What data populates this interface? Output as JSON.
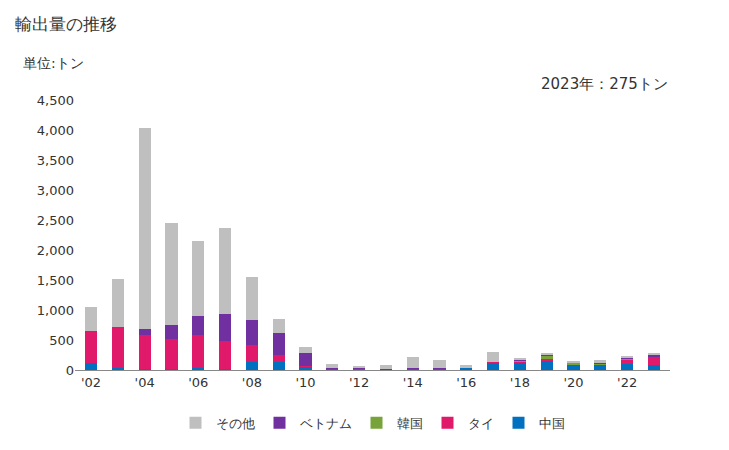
{
  "chart_data": {
    "type": "bar",
    "title": "輸出量の推移",
    "ylabel": "単位:トン",
    "annotations": [
      {
        "text": "2023年：275トン"
      }
    ],
    "stacked": true,
    "grid": false,
    "legend": "bottom",
    "categories": [
      "'02",
      null,
      "'04",
      null,
      "'06",
      null,
      "'08",
      null,
      "'10",
      null,
      "'12",
      null,
      "'14",
      null,
      "'16",
      null,
      "'18",
      null,
      "'20",
      null,
      "'22",
      null
    ],
    "series": [
      {
        "name": "中国",
        "color": "#0070c0",
        "values": [
          120,
          30,
          20,
          10,
          40,
          20,
          130,
          140,
          50,
          20,
          10,
          10,
          30,
          20,
          40,
          120,
          120,
          160,
          90,
          90,
          100,
          80
        ]
      },
      {
        "name": "タイ",
        "color": "#e0196b",
        "values": [
          530,
          690,
          570,
          510,
          540,
          460,
          290,
          110,
          10,
          0,
          10,
          5,
          0,
          0,
          0,
          10,
          20,
          30,
          0,
          0,
          80,
          140
        ]
      },
      {
        "name": "韓国",
        "color": "#77a33a",
        "values": [
          0,
          0,
          0,
          0,
          0,
          0,
          0,
          0,
          0,
          10,
          0,
          0,
          0,
          0,
          0,
          0,
          20,
          50,
          40,
          10,
          10,
          10
        ]
      },
      {
        "name": "ベトナム",
        "color": "#7030a0",
        "values": [
          0,
          0,
          90,
          230,
          320,
          460,
          410,
          370,
          220,
          10,
          10,
          10,
          10,
          10,
          0,
          0,
          10,
          20,
          0,
          10,
          10,
          20
        ]
      },
      {
        "name": "その他",
        "color": "#bfbfbf",
        "values": [
          400,
          800,
          3360,
          1700,
          1250,
          1430,
          720,
          230,
          100,
          60,
          40,
          65,
          180,
          130,
          50,
          170,
          30,
          30,
          20,
          50,
          40,
          25
        ]
      }
    ],
    "ylim": [
      0,
      4500
    ],
    "yticks": [
      0,
      500,
      {
        "value": 1000,
        "label": "1,000"
      },
      {
        "value": 1500,
        "label": "1,500"
      },
      {
        "value": 2000,
        "label": "2,000"
      },
      {
        "value": 2500,
        "label": "2,500"
      },
      {
        "value": 3000,
        "label": "3,000"
      },
      {
        "value": 3500,
        "label": "3,500"
      },
      {
        "value": 4000,
        "label": "4,000"
      },
      {
        "value": 4500,
        "label": "4,500"
      }
    ]
  }
}
